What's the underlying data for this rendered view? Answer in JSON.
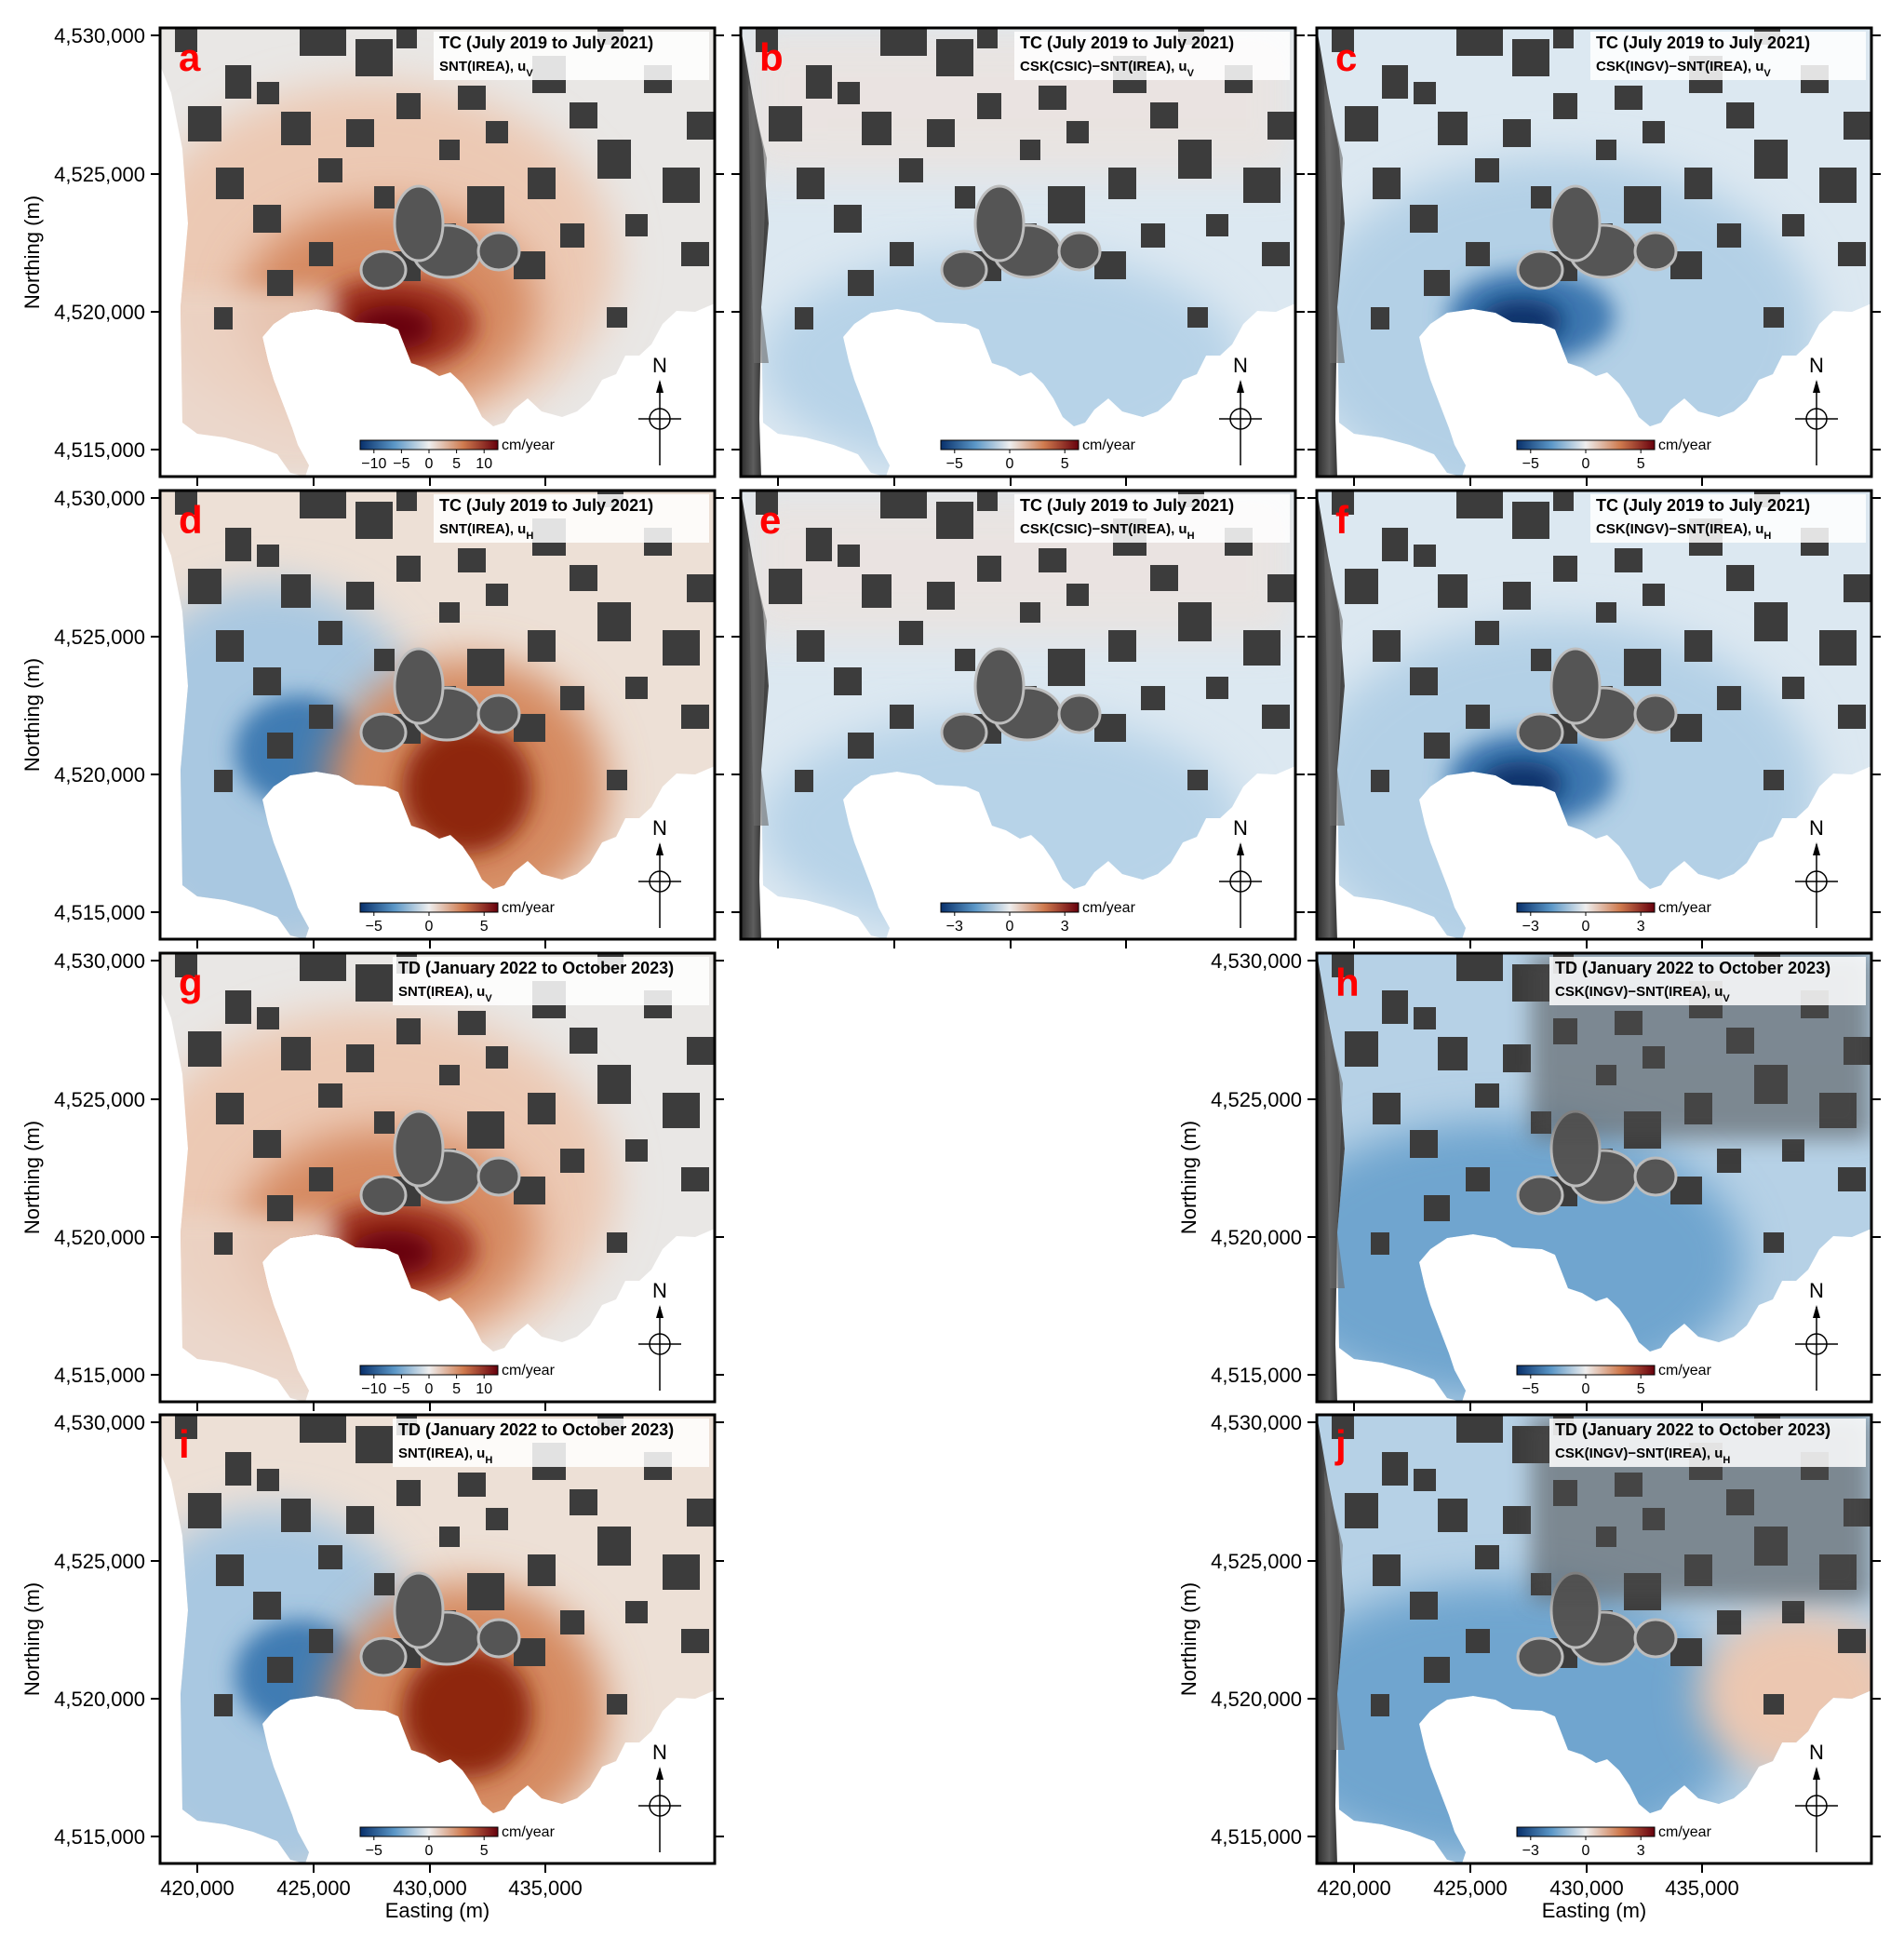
{
  "axes": {
    "ylabel": "Northing (m)",
    "xlabel": "Easting (m)",
    "yticks": [
      "4,530,000",
      "4,525,000",
      "4,520,000",
      "4,515,000"
    ],
    "xticks": [
      "420,000",
      "425,000",
      "430,000",
      "435,000"
    ]
  },
  "north_arrow": "N",
  "unit": "cm/year",
  "colors": {
    "negative": "#08306b",
    "neutral": "#e9e7e5",
    "positive": "#67000d",
    "mask": "#3c3c3c",
    "letter": "#ff0000"
  },
  "panels": [
    {
      "letter": "a",
      "title": "TC (July 2019 to July 2021)",
      "subtitle": "SNT(IREA), u",
      "comp": "V",
      "ticks": [
        "−10",
        "−5",
        "0",
        "5",
        "10"
      ],
      "pattern": "vert_up",
      "dem": false
    },
    {
      "letter": "b",
      "title": "TC (July 2019 to July 2021)",
      "subtitle": "CSK(CSIC)−SNT(IREA), u",
      "comp": "V",
      "ticks": [
        "−5",
        "0",
        "5"
      ],
      "pattern": "diff_light",
      "dem": true
    },
    {
      "letter": "c",
      "title": "TC (July 2019 to July 2021)",
      "subtitle": "CSK(INGV)−SNT(IREA), u",
      "comp": "V",
      "ticks": [
        "−5",
        "0",
        "5"
      ],
      "pattern": "diff_strong",
      "dem": true
    },
    {
      "letter": "d",
      "title": "TC (July 2019 to July 2021)",
      "subtitle": "SNT(IREA), u",
      "comp": "H",
      "ticks": [
        "−5",
        "0",
        "5"
      ],
      "pattern": "horiz",
      "dem": false
    },
    {
      "letter": "e",
      "title": "TC (July 2019 to July 2021)",
      "subtitle": "CSK(CSIC)−SNT(IREA), u",
      "comp": "H",
      "ticks": [
        "−3",
        "0",
        "3"
      ],
      "pattern": "diff_light",
      "dem": true
    },
    {
      "letter": "f",
      "title": "TC (July 2019 to July 2021)",
      "subtitle": "CSK(INGV)−SNT(IREA), u",
      "comp": "H",
      "ticks": [
        "−3",
        "0",
        "3"
      ],
      "pattern": "diff_strong",
      "dem": true
    },
    {
      "letter": "g",
      "title": "TD (January 2022 to October 2023)",
      "subtitle": "SNT(IREA), u",
      "comp": "V",
      "ticks": [
        "−10",
        "−5",
        "0",
        "5",
        "10"
      ],
      "pattern": "vert_up",
      "dem": false
    },
    {
      "letter": "h",
      "title": "TD (January 2022 to October 2023)",
      "subtitle": "CSK(INGV)−SNT(IREA), u",
      "comp": "V",
      "ticks": [
        "−5",
        "0",
        "5"
      ],
      "pattern": "diff_dark",
      "dem": true
    },
    {
      "letter": "i",
      "title": "TD (January 2022 to October 2023)",
      "subtitle": "SNT(IREA), u",
      "comp": "H",
      "ticks": [
        "−5",
        "0",
        "5"
      ],
      "pattern": "horiz",
      "dem": false
    },
    {
      "letter": "j",
      "title": "TD (January 2022 to October 2023)",
      "subtitle": "CSK(INGV)−SNT(IREA), u",
      "comp": "H",
      "ticks": [
        "−3",
        "0",
        "3"
      ],
      "pattern": "diff_dark",
      "dem": true
    }
  ]
}
